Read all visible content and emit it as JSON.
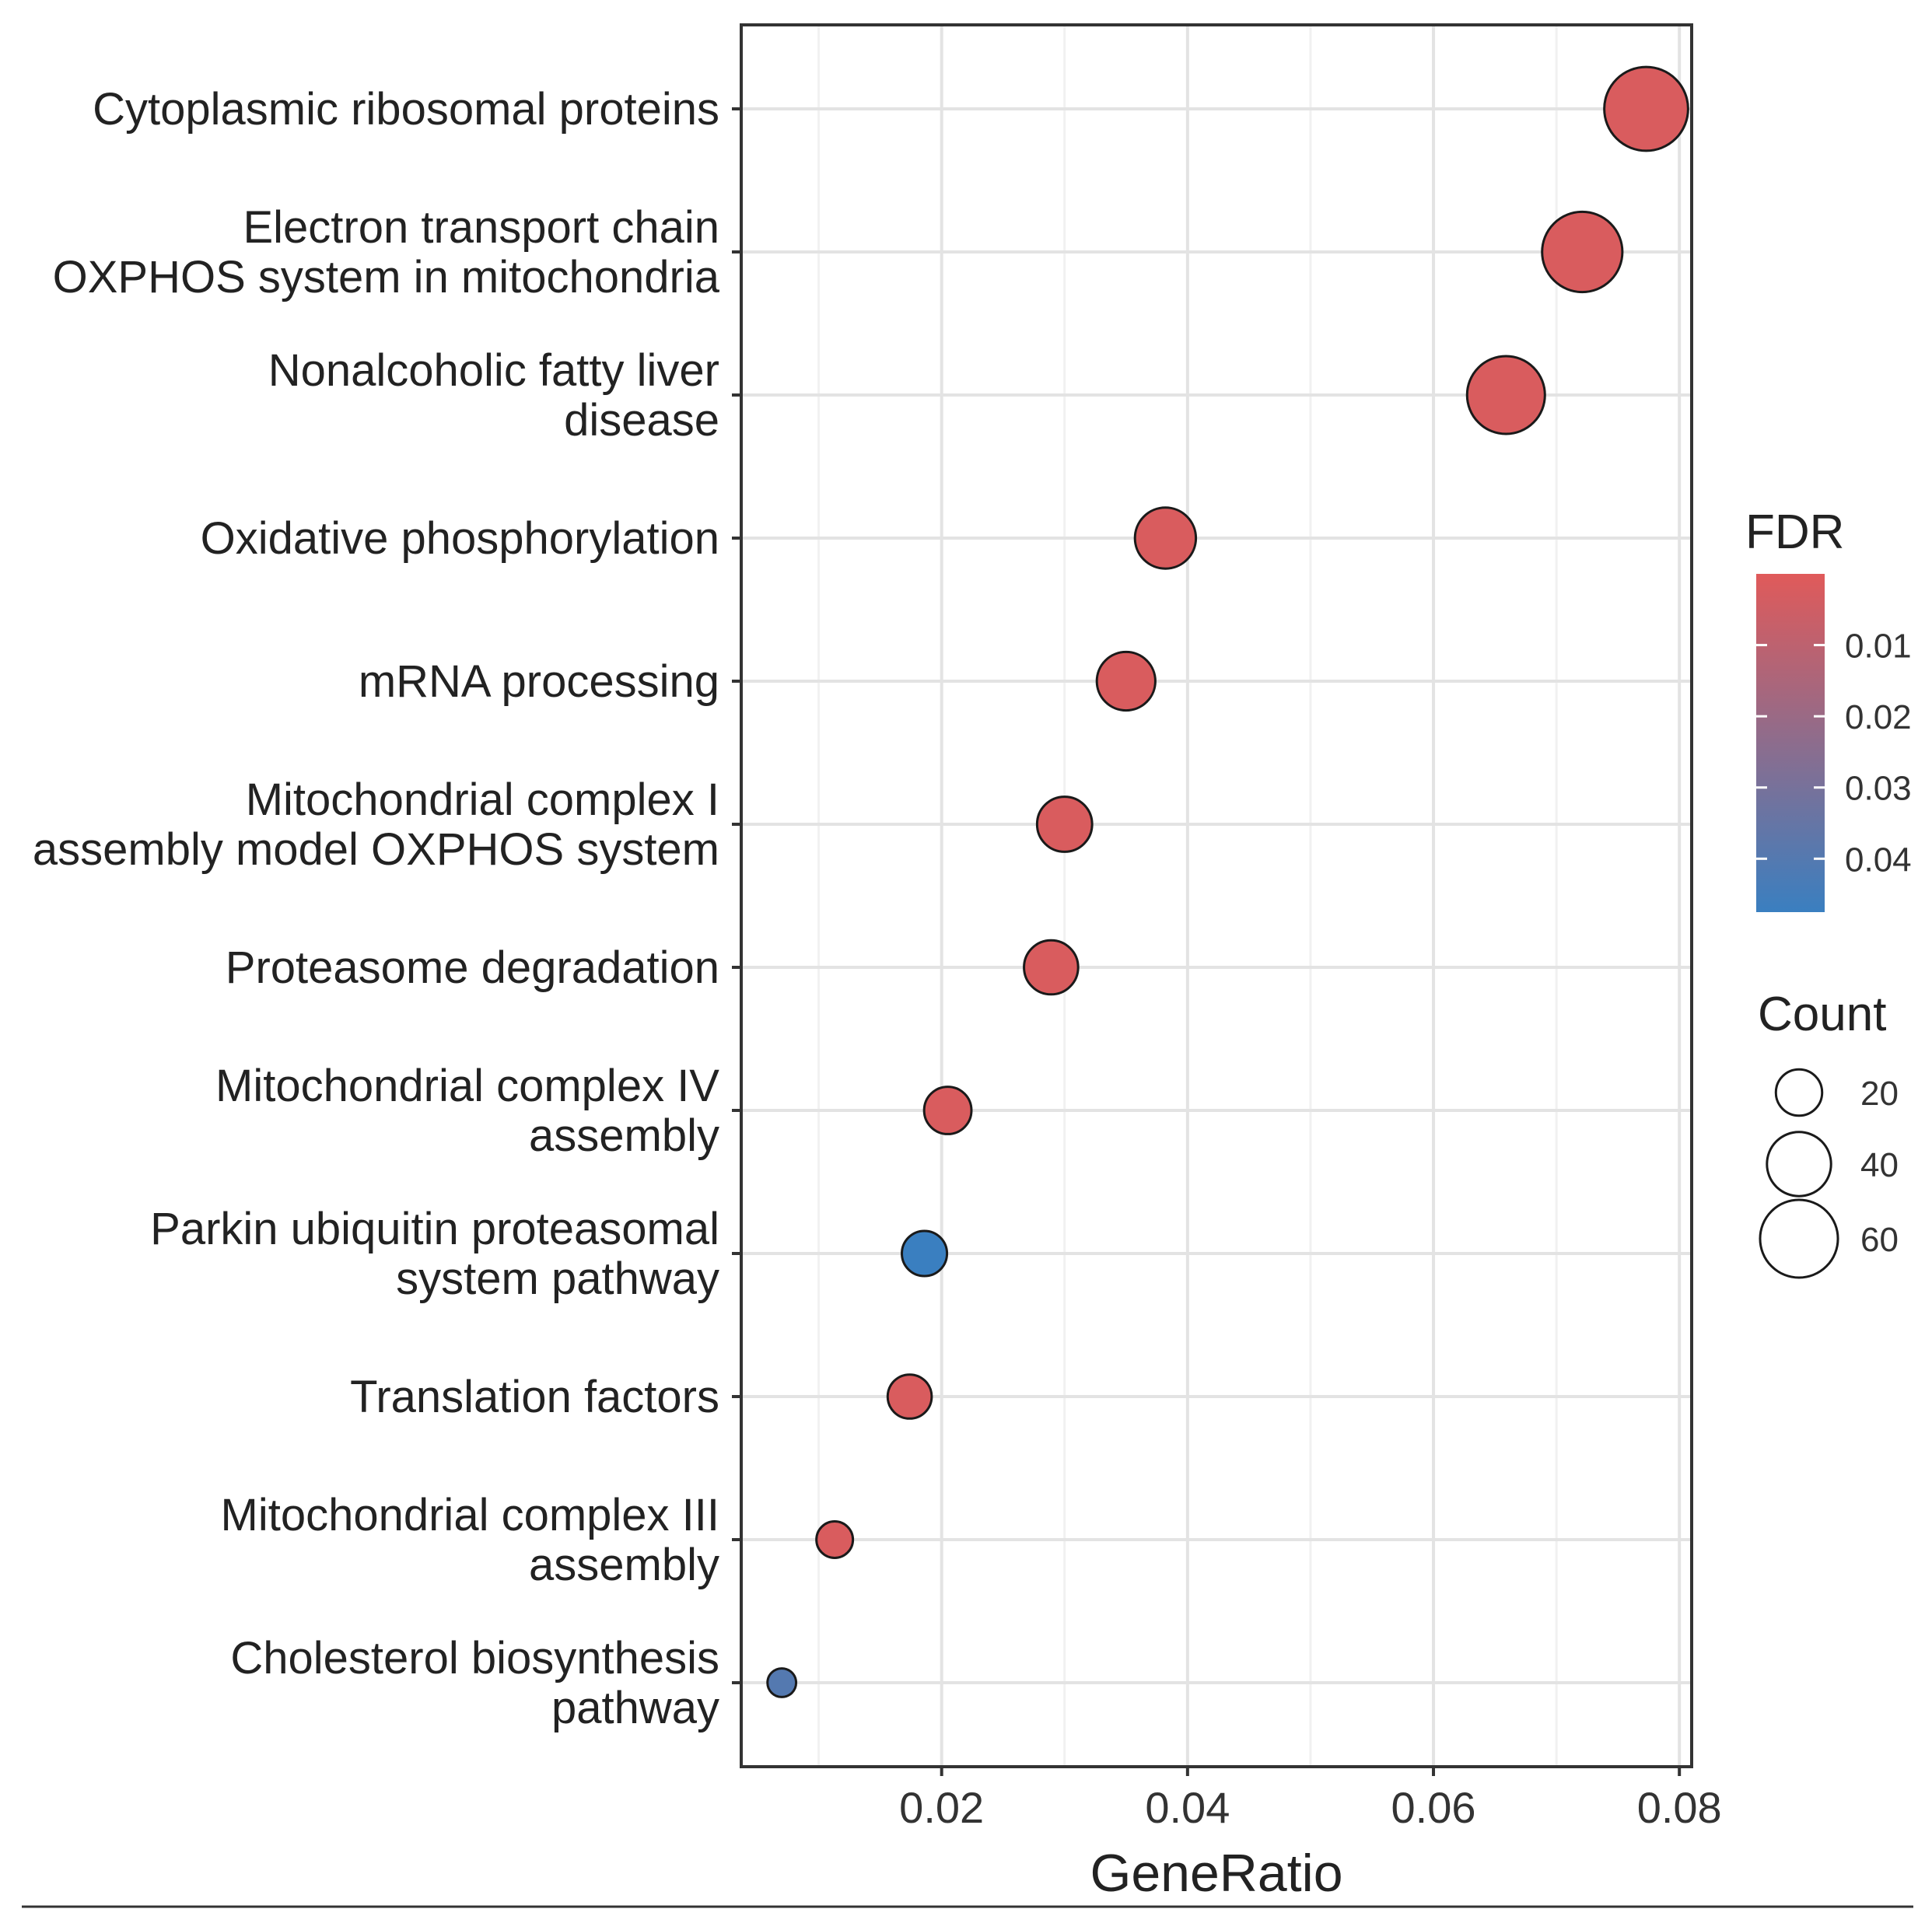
{
  "chart_data": {
    "type": "scatter",
    "xlabel": "GeneRatio",
    "ylabel": "",
    "xlim": [
      0.0037,
      0.081
    ],
    "x_ticks": [
      0.02,
      0.04,
      0.06,
      0.08
    ],
    "x_tick_labels": [
      "0.02",
      "0.04",
      "0.06",
      "0.08"
    ],
    "grid": true,
    "categories": [
      "Cytoplasmic ribosomal proteins",
      "Electron transport chain\nOXPHOS system in mitochondria",
      "Nonalcoholic fatty liver\ndisease",
      "Oxidative phosphorylation",
      "mRNA processing",
      "Mitochondrial complex I\nassembly model OXPHOS system",
      "Proteasome degradation",
      "Mitochondrial complex IV\nassembly",
      "Parkin ubiquitin proteasomal\nsystem pathway",
      "Translation factors",
      "Mitochondrial complex III\nassembly",
      "Cholesterol biosynthesis\npathway"
    ],
    "points": [
      {
        "x": 0.0773,
        "count": 70,
        "fdr": 0.002
      },
      {
        "x": 0.0721,
        "count": 64,
        "fdr": 0.002
      },
      {
        "x": 0.0659,
        "count": 60,
        "fdr": 0.002
      },
      {
        "x": 0.0382,
        "count": 36,
        "fdr": 0.002
      },
      {
        "x": 0.035,
        "count": 33,
        "fdr": 0.002
      },
      {
        "x": 0.03,
        "count": 29,
        "fdr": 0.002
      },
      {
        "x": 0.0289,
        "count": 28,
        "fdr": 0.002
      },
      {
        "x": 0.0205,
        "count": 21,
        "fdr": 0.002
      },
      {
        "x": 0.0186,
        "count": 19,
        "fdr": 0.048
      },
      {
        "x": 0.0174,
        "count": 18,
        "fdr": 0.002
      },
      {
        "x": 0.0113,
        "count": 12,
        "fdr": 0.002
      },
      {
        "x": 0.007,
        "count": 7,
        "fdr": 0.04
      }
    ],
    "color_legend": {
      "title": "FDR",
      "range": [
        0.0,
        0.0475
      ],
      "ticks": [
        0.01,
        0.02,
        0.03,
        0.04
      ],
      "tick_labels": [
        "0.01",
        "0.02",
        "0.03",
        "0.04"
      ],
      "low_color": "#e05a5a",
      "high_color": "#3a7fc0"
    },
    "size_legend": {
      "title": "Count",
      "values": [
        20,
        40,
        60
      ],
      "labels": [
        "20",
        "40",
        "60"
      ]
    },
    "legend_position": "right"
  }
}
